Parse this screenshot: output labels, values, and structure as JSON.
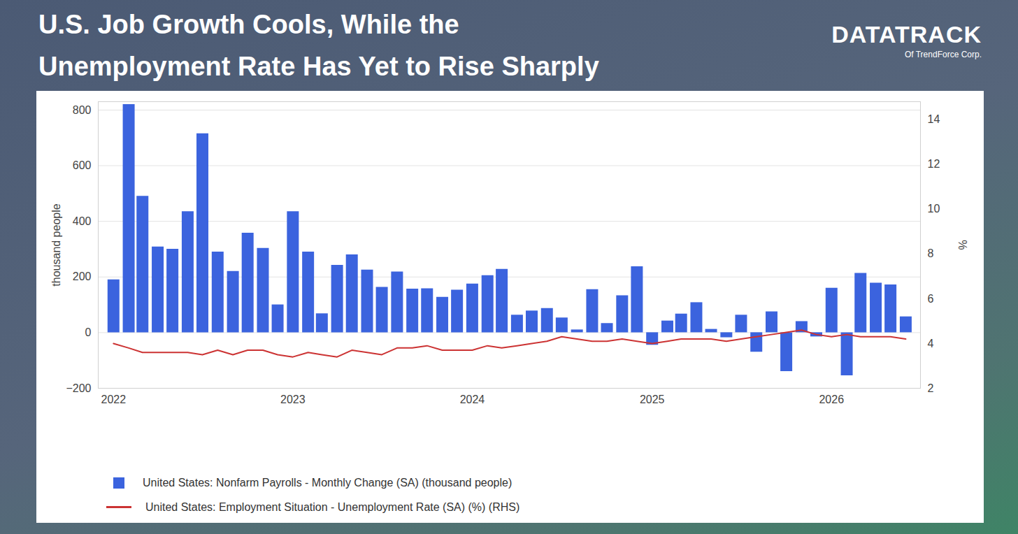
{
  "chart_data": {
    "type": "bar",
    "title": "U.S. Job Growth Cools, While the Unemployment Rate Has Yet to Rise Sharply",
    "logo": {
      "name": "DATATRACK",
      "owner": "Of TrendForce Corp."
    },
    "ylabel": "thousand people",
    "y2label": "%",
    "x": [
      "2022-01",
      "2022-02",
      "2022-03",
      "2022-04",
      "2022-05",
      "2022-06",
      "2022-07",
      "2022-08",
      "2022-09",
      "2022-10",
      "2022-11",
      "2022-12",
      "2023-01",
      "2023-02",
      "2023-03",
      "2023-04",
      "2023-05",
      "2023-06",
      "2023-07",
      "2023-08",
      "2023-09",
      "2023-10",
      "2023-11",
      "2023-12",
      "2024-01",
      "2024-02",
      "2024-03",
      "2024-04",
      "2024-05",
      "2024-06",
      "2024-07",
      "2024-08",
      "2024-09",
      "2024-10",
      "2024-11",
      "2024-12",
      "2025-01",
      "2025-02",
      "2025-03",
      "2025-04",
      "2025-05",
      "2025-06",
      "2025-07",
      "2025-08",
      "2025-09",
      "2025-10",
      "2025-11",
      "2025-12",
      "2026-01",
      "2026-02",
      "2026-03",
      "2026-04",
      "2026-05",
      "2026-06"
    ],
    "series": [
      {
        "name": "United States: Nonfarm Payrolls - Monthly Change (SA) (thousand people)",
        "type": "bar",
        "color": "#3b63de",
        "values": [
          190,
          820,
          490,
          308,
          300,
          435,
          715,
          290,
          220,
          358,
          303,
          100,
          435,
          290,
          68,
          242,
          280,
          225,
          163,
          218,
          157,
          158,
          127,
          153,
          175,
          205,
          228,
          63,
          78,
          87,
          53,
          10,
          155,
          33,
          133,
          237,
          -45,
          42,
          67,
          108,
          12,
          -18,
          63,
          -70,
          75,
          -140,
          40,
          -15,
          160,
          -155,
          213,
          178,
          172,
          57
        ]
      },
      {
        "name": "United States: Employment Situation - Unemployment Rate (SA) (%) (RHS)",
        "type": "line",
        "color": "#cc3333",
        "axis": "y2",
        "values": [
          4.0,
          3.8,
          3.6,
          3.6,
          3.6,
          3.6,
          3.5,
          3.7,
          3.5,
          3.7,
          3.7,
          3.5,
          3.4,
          3.6,
          3.5,
          3.4,
          3.7,
          3.6,
          3.5,
          3.8,
          3.8,
          3.9,
          3.7,
          3.7,
          3.7,
          3.9,
          3.8,
          3.9,
          4.0,
          4.1,
          4.3,
          4.2,
          4.1,
          4.1,
          4.2,
          4.1,
          4.0,
          4.1,
          4.2,
          4.2,
          4.2,
          4.1,
          4.2,
          4.3,
          4.4,
          4.5,
          4.6,
          4.4,
          4.3,
          4.4,
          4.3,
          4.3,
          4.3,
          4.2
        ]
      }
    ],
    "xlim": [
      "2021-12",
      "2026-07"
    ],
    "xticks": [
      "2022",
      "2023",
      "2024",
      "2025",
      "2026"
    ],
    "ylim": [
      -200,
      830
    ],
    "yticks": [
      -200,
      0,
      200,
      400,
      600,
      800
    ],
    "y2lim": [
      2,
      14.8
    ],
    "y2ticks": [
      2,
      4,
      6,
      8,
      10,
      12,
      14
    ],
    "grid": true,
    "legend": "bottom"
  }
}
